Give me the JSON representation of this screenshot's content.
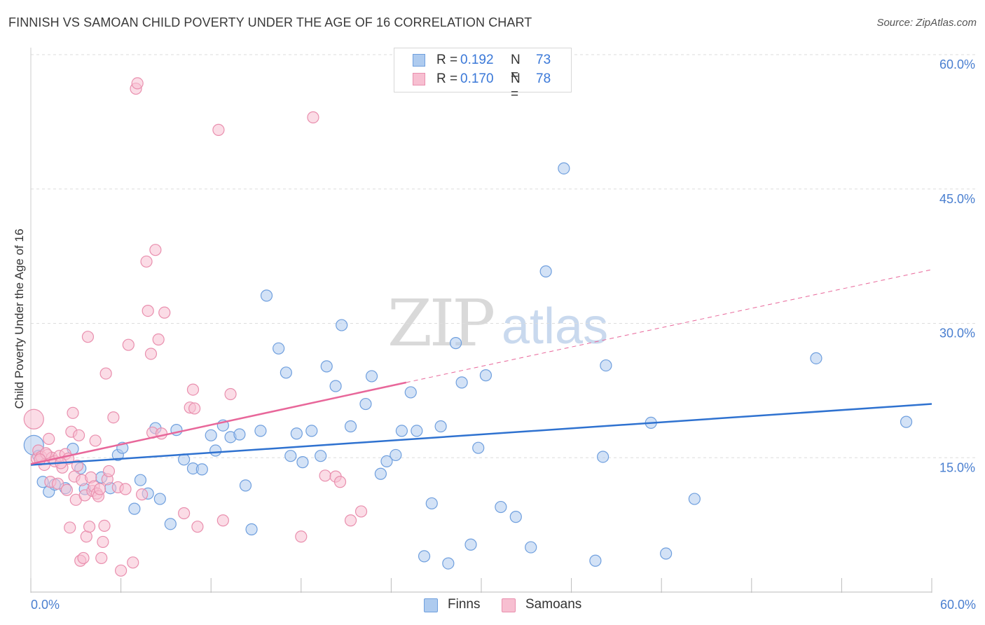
{
  "header": {
    "title": "FINNISH VS SAMOAN CHILD POVERTY UNDER THE AGE OF 16 CORRELATION CHART",
    "source": "Source: ZipAtlas.com"
  },
  "watermark": {
    "zip": "ZIP",
    "atlas": "atlas"
  },
  "legend": {
    "rows": [
      {
        "r_label": "R =",
        "r_value": "0.192",
        "n_label": "N =",
        "n_value": "73"
      },
      {
        "r_label": "R =",
        "r_value": "0.170",
        "n_label": "N =",
        "n_value": "78"
      }
    ]
  },
  "bottom_legend": {
    "finns": "Finns",
    "samoans": "Samoans"
  },
  "colors": {
    "finns_fill": "#aecbef",
    "finns_stroke": "#6f9fde",
    "finns_line": "#2f72d0",
    "samoans_fill": "#f7bfd1",
    "samoans_stroke": "#e98fae",
    "samoans_line": "#e8679a",
    "tick_label": "#4a7fd0",
    "grid": "#dddddd"
  },
  "chart_data": {
    "type": "scatter",
    "title": "FINNISH VS SAMOAN CHILD POVERTY UNDER THE AGE OF 16 CORRELATION CHART",
    "xlabel": "",
    "ylabel": "Child Poverty Under the Age of 16",
    "xlim": [
      0,
      60
    ],
    "ylim": [
      0,
      60
    ],
    "x_tick_labels": [
      "0.0%",
      "60.0%"
    ],
    "y_ticks": [
      15,
      30,
      45,
      60
    ],
    "y_tick_labels": [
      "15.0%",
      "30.0%",
      "45.0%",
      "60.0%"
    ],
    "grid": true,
    "legend_position": "top-center",
    "series": [
      {
        "name": "Finns",
        "r": 0.192,
        "n": 73,
        "trend": {
          "x": [
            0,
            60
          ],
          "y": [
            14.2,
            21.0
          ]
        },
        "points": [
          [
            0.2,
            16.4
          ],
          [
            0.5,
            15.2
          ],
          [
            0.8,
            12.3
          ],
          [
            1.2,
            11.2
          ],
          [
            1.6,
            12.0
          ],
          [
            2.3,
            11.6
          ],
          [
            2.8,
            16.0
          ],
          [
            3.3,
            13.8
          ],
          [
            3.6,
            11.5
          ],
          [
            4.7,
            12.8
          ],
          [
            5.3,
            11.6
          ],
          [
            5.8,
            15.3
          ],
          [
            6.1,
            16.1
          ],
          [
            6.9,
            9.3
          ],
          [
            7.3,
            12.5
          ],
          [
            7.8,
            11.0
          ],
          [
            8.3,
            18.3
          ],
          [
            8.6,
            10.4
          ],
          [
            9.3,
            7.6
          ],
          [
            9.7,
            18.1
          ],
          [
            10.2,
            14.8
          ],
          [
            10.8,
            13.8
          ],
          [
            11.4,
            13.7
          ],
          [
            12.0,
            17.5
          ],
          [
            12.3,
            15.8
          ],
          [
            12.8,
            18.6
          ],
          [
            13.3,
            17.3
          ],
          [
            13.9,
            17.6
          ],
          [
            14.3,
            11.9
          ],
          [
            14.7,
            7.0
          ],
          [
            15.3,
            18.0
          ],
          [
            15.7,
            33.1
          ],
          [
            16.5,
            27.2
          ],
          [
            17.0,
            24.5
          ],
          [
            17.3,
            15.2
          ],
          [
            17.7,
            17.7
          ],
          [
            18.1,
            14.5
          ],
          [
            18.7,
            18.0
          ],
          [
            19.3,
            15.2
          ],
          [
            19.7,
            25.2
          ],
          [
            20.3,
            23.0
          ],
          [
            20.7,
            29.8
          ],
          [
            21.3,
            18.5
          ],
          [
            22.3,
            21.0
          ],
          [
            22.7,
            24.1
          ],
          [
            23.3,
            13.2
          ],
          [
            23.7,
            14.6
          ],
          [
            24.3,
            15.3
          ],
          [
            24.7,
            18.0
          ],
          [
            25.3,
            22.3
          ],
          [
            25.7,
            18.0
          ],
          [
            26.2,
            4.0
          ],
          [
            26.7,
            9.9
          ],
          [
            27.3,
            18.5
          ],
          [
            27.8,
            3.2
          ],
          [
            28.3,
            27.8
          ],
          [
            28.7,
            23.4
          ],
          [
            29.3,
            5.3
          ],
          [
            29.8,
            16.1
          ],
          [
            30.3,
            24.2
          ],
          [
            31.3,
            9.5
          ],
          [
            32.3,
            8.4
          ],
          [
            33.3,
            5.0
          ],
          [
            34.3,
            35.8
          ],
          [
            35.5,
            47.3
          ],
          [
            37.6,
            3.5
          ],
          [
            38.1,
            15.1
          ],
          [
            38.3,
            25.3
          ],
          [
            41.3,
            18.9
          ],
          [
            42.3,
            4.3
          ],
          [
            44.2,
            10.4
          ],
          [
            52.3,
            26.1
          ],
          [
            58.3,
            19.0
          ]
        ]
      },
      {
        "name": "Samoans",
        "r": 0.17,
        "n": 78,
        "trend": {
          "x": [
            0,
            25
          ],
          "y": [
            14.3,
            23.4
          ]
        },
        "trend_extended": {
          "x": [
            25,
            60
          ],
          "y": [
            23.4,
            36.0
          ]
        },
        "points": [
          [
            0.2,
            19.3
          ],
          [
            0.4,
            14.9
          ],
          [
            0.5,
            15.8
          ],
          [
            0.7,
            15.1
          ],
          [
            0.9,
            14.2
          ],
          [
            1.1,
            15.3
          ],
          [
            1.2,
            17.1
          ],
          [
            1.3,
            12.3
          ],
          [
            1.4,
            15.0
          ],
          [
            1.6,
            14.6
          ],
          [
            1.8,
            12.1
          ],
          [
            1.9,
            15.2
          ],
          [
            2.1,
            13.9
          ],
          [
            2.3,
            15.4
          ],
          [
            2.4,
            11.4
          ],
          [
            2.5,
            14.9
          ],
          [
            2.6,
            7.2
          ],
          [
            2.7,
            17.9
          ],
          [
            2.8,
            20.0
          ],
          [
            2.9,
            12.9
          ],
          [
            3.0,
            10.3
          ],
          [
            3.1,
            14.1
          ],
          [
            3.2,
            17.5
          ],
          [
            3.3,
            3.5
          ],
          [
            3.4,
            12.5
          ],
          [
            3.5,
            3.8
          ],
          [
            3.6,
            10.8
          ],
          [
            3.7,
            6.2
          ],
          [
            3.8,
            28.5
          ],
          [
            3.9,
            7.3
          ],
          [
            4.0,
            12.8
          ],
          [
            4.1,
            11.3
          ],
          [
            4.2,
            11.8
          ],
          [
            4.3,
            16.9
          ],
          [
            4.4,
            11.0
          ],
          [
            4.5,
            10.7
          ],
          [
            4.6,
            11.5
          ],
          [
            4.7,
            3.8
          ],
          [
            4.8,
            5.6
          ],
          [
            4.9,
            7.4
          ],
          [
            5.0,
            24.4
          ],
          [
            5.1,
            12.6
          ],
          [
            5.2,
            13.5
          ],
          [
            5.5,
            19.5
          ],
          [
            5.8,
            11.7
          ],
          [
            6.0,
            2.4
          ],
          [
            6.5,
            27.6
          ],
          [
            6.8,
            3.3
          ],
          [
            7.0,
            56.2
          ],
          [
            7.1,
            56.8
          ],
          [
            7.4,
            10.9
          ],
          [
            7.7,
            36.9
          ],
          [
            7.8,
            31.4
          ],
          [
            8.0,
            26.6
          ],
          [
            8.1,
            17.8
          ],
          [
            8.3,
            38.2
          ],
          [
            8.5,
            28.2
          ],
          [
            8.9,
            31.2
          ],
          [
            10.2,
            8.8
          ],
          [
            10.6,
            20.6
          ],
          [
            10.8,
            22.6
          ],
          [
            10.9,
            20.5
          ],
          [
            11.1,
            7.3
          ],
          [
            12.5,
            51.6
          ],
          [
            12.8,
            8.0
          ],
          [
            13.3,
            22.1
          ],
          [
            18.0,
            6.2
          ],
          [
            18.8,
            53.0
          ],
          [
            19.6,
            13.0
          ],
          [
            20.3,
            12.9
          ],
          [
            20.6,
            12.3
          ],
          [
            21.3,
            8.0
          ],
          [
            22.0,
            9.0
          ],
          [
            8.7,
            17.7
          ],
          [
            6.3,
            11.5
          ],
          [
            2.0,
            14.4
          ],
          [
            1.0,
            15.5
          ],
          [
            0.6,
            14.8
          ]
        ]
      }
    ]
  }
}
